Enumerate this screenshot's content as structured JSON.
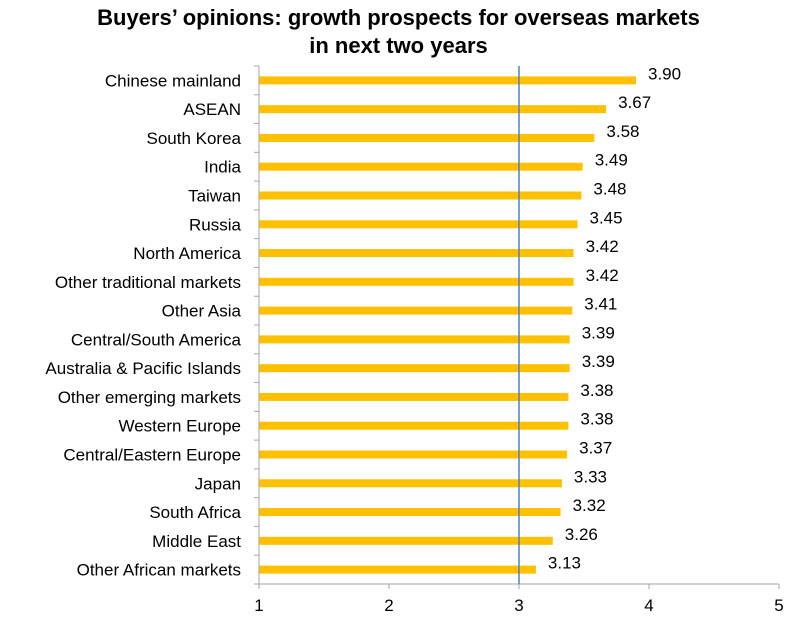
{
  "chart_data": {
    "type": "bar",
    "orientation": "horizontal",
    "title_lines": [
      "Buyers’ opinions: growth prospects for overseas markets",
      "in next two years"
    ],
    "categories": [
      "Chinese mainland",
      "ASEAN",
      "South Korea",
      "India",
      "Taiwan",
      "Russia",
      "North America",
      "Other traditional markets",
      "Other Asia",
      "Central/South America",
      "Australia & Pacific Islands",
      "Other emerging markets",
      "Western Europe",
      "Central/Eastern Europe",
      "Japan",
      "South Africa",
      "Middle East",
      "Other African markets"
    ],
    "values": [
      3.9,
      3.67,
      3.58,
      3.49,
      3.48,
      3.45,
      3.42,
      3.42,
      3.41,
      3.39,
      3.39,
      3.38,
      3.38,
      3.37,
      3.33,
      3.32,
      3.26,
      3.13
    ],
    "value_labels": [
      "3.90",
      "3.67",
      "3.58",
      "3.49",
      "3.48",
      "3.45",
      "3.42",
      "3.42",
      "3.41",
      "3.39",
      "3.39",
      "3.38",
      "3.38",
      "3.37",
      "3.33",
      "3.32",
      "3.26",
      "3.13"
    ],
    "x_ticks": [
      "1",
      "2",
      "3",
      "4",
      "5"
    ],
    "xlim": [
      1,
      5
    ],
    "reference_line": 3,
    "grid": false,
    "legend": "none",
    "bar_color": "#FFC000",
    "reference_line_color": "#4F81BD",
    "axis_color": "#A6A6A6"
  }
}
